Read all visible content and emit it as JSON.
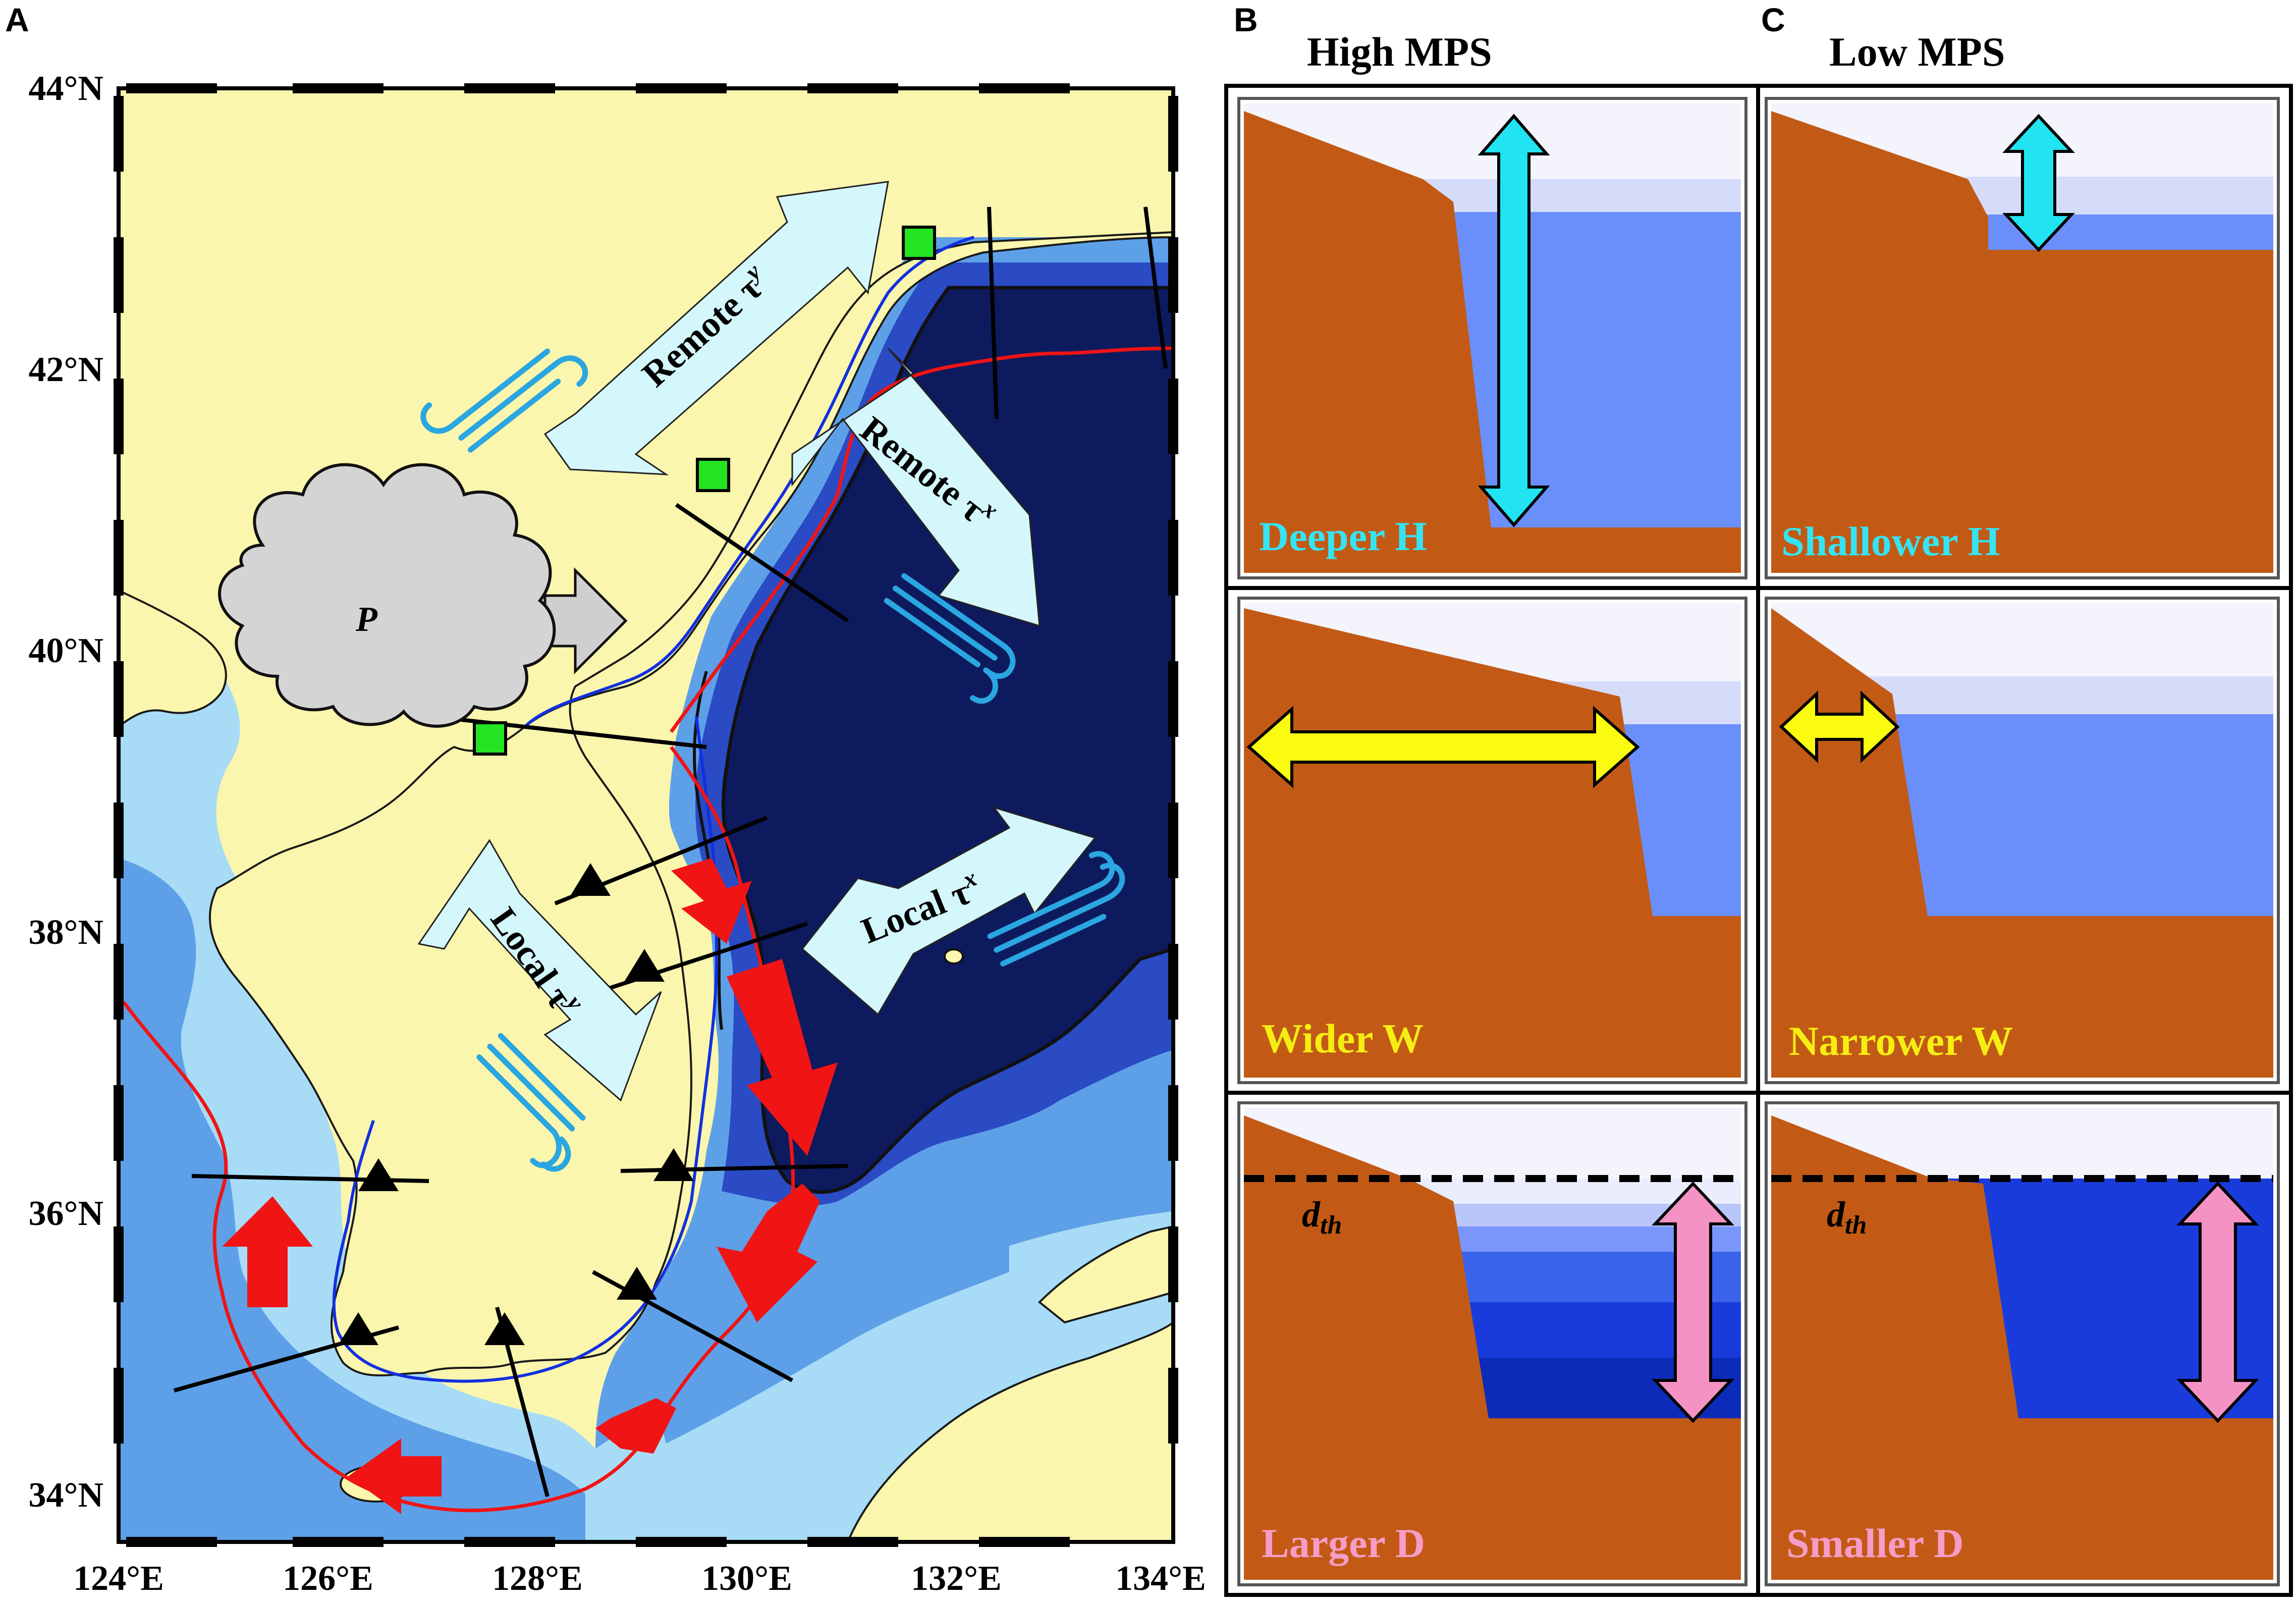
{
  "panel_a": {
    "letter": "A",
    "lat_labels": [
      "44°N",
      "42°N",
      "40°N",
      "38°N",
      "36°N",
      "34°N"
    ],
    "lon_labels": [
      "124°E",
      "126°E",
      "128°E",
      "130°E",
      "132°E",
      "134°E"
    ],
    "arrows": {
      "remote_ty": {
        "text": "Remote τ",
        "sup": "y"
      },
      "remote_tx": {
        "text": "Remote τ",
        "sup": "x"
      },
      "local_ty": {
        "text": "Local τ",
        "sup": "y"
      },
      "local_tx": {
        "text": "Local τ",
        "sup": "x"
      }
    },
    "precip_label": "P"
  },
  "panel_b": {
    "letter": "B",
    "title": "High MPS"
  },
  "panel_c": {
    "letter": "C",
    "title": "Low MPS"
  },
  "cells": {
    "deeper_h": "Deeper H",
    "shallower_h": "Shallower H",
    "wider_w": "Wider W",
    "narrower_w": "Narrower W",
    "larger_d": "Larger D",
    "smaller_d": "Smaller D",
    "dth_base": "d",
    "dth_sub": "th"
  },
  "colors": {
    "land": "#fbf6ad",
    "ocean_deep": "#0e1a5e",
    "ocean_mid": "#2a4bc4",
    "ocean_shallow": "#5ea0e8",
    "ocean_shelf": "#a8dcf6",
    "shelf_brown": "#c25a16",
    "water_light": "#6b8ffa",
    "water_deep": "#1a3bdc",
    "arrow_cyan": "#22e3f2",
    "arrow_yellow": "#fbfb10",
    "arrow_pink": "#f592c4",
    "label_cyan": "#35e4f2",
    "label_yellow": "#f5ee12",
    "label_pink": "#f79cc8",
    "current_red": "#f01414",
    "wind_blue": "#2aa6e0",
    "station_green": "#24e424"
  }
}
